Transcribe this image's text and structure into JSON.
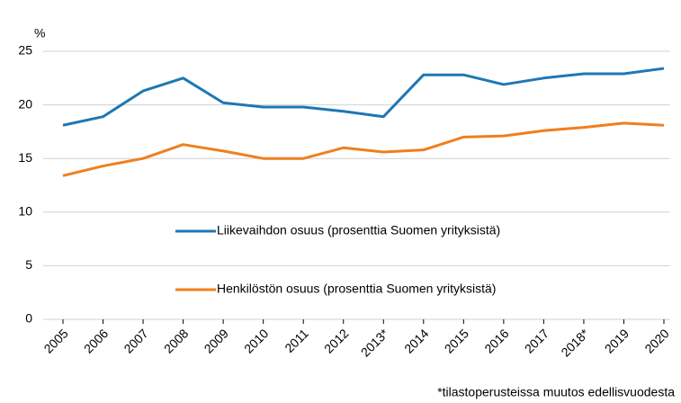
{
  "chart_data": {
    "type": "line",
    "y_label": "%",
    "categories": [
      "2005",
      "2006",
      "2007",
      "2008",
      "2009",
      "2010",
      "2011",
      "2012",
      "2013*",
      "2014",
      "2015",
      "2016",
      "2017",
      "2018*",
      "2019",
      "2020"
    ],
    "series": [
      {
        "name": "Liikevaihdon osuus (prosenttia Suomen yrityksistä)",
        "color": "#1f77b4",
        "values": [
          18.1,
          18.9,
          21.3,
          22.5,
          20.2,
          19.8,
          19.8,
          19.4,
          18.9,
          22.8,
          22.8,
          21.9,
          22.5,
          22.9,
          22.9,
          23.4
        ]
      },
      {
        "name": "Henkilöstön osuus (prosenttia Suomen yrityksistä)",
        "color": "#f07f1e",
        "values": [
          13.4,
          14.3,
          15.0,
          16.3,
          15.7,
          15.0,
          15.0,
          16.0,
          15.6,
          15.8,
          17.0,
          17.1,
          17.6,
          17.9,
          18.3,
          18.1
        ]
      }
    ],
    "ylim": [
      0,
      25
    ],
    "yticks": [
      0,
      5,
      10,
      15,
      20,
      25
    ],
    "grid": true,
    "footnote": "*tilastoperusteissa muutos edellisvuodesta"
  }
}
